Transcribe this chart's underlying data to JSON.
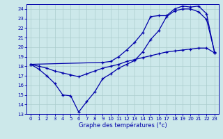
{
  "xlabel": "Graphe des températures (°c)",
  "background_color": "#cce8ea",
  "grid_color": "#aacccc",
  "line_color": "#0000aa",
  "xlim": [
    -0.5,
    23.5
  ],
  "ylim": [
    13,
    24.5
  ],
  "yticks": [
    13,
    14,
    15,
    16,
    17,
    18,
    19,
    20,
    21,
    22,
    23,
    24
  ],
  "xticks": [
    0,
    1,
    2,
    3,
    4,
    5,
    6,
    7,
    8,
    9,
    10,
    11,
    12,
    13,
    14,
    15,
    16,
    17,
    18,
    19,
    20,
    21,
    22,
    23
  ],
  "line1_x": [
    0,
    1,
    2,
    3,
    4,
    5,
    6,
    7,
    8,
    9,
    10,
    11,
    12,
    13,
    14,
    15,
    16,
    17,
    18,
    19,
    20,
    21,
    22,
    23
  ],
  "line1_y": [
    18.2,
    17.7,
    17.0,
    16.2,
    15.0,
    14.9,
    13.2,
    14.3,
    15.3,
    16.7,
    17.2,
    17.8,
    18.2,
    18.6,
    19.5,
    20.8,
    21.7,
    23.2,
    23.8,
    24.0,
    24.0,
    23.7,
    22.9,
    19.5
  ],
  "line2_x": [
    0,
    9,
    10,
    11,
    12,
    13,
    14,
    15,
    16,
    17,
    18,
    19,
    20,
    21,
    22,
    23
  ],
  "line2_y": [
    18.2,
    18.4,
    18.5,
    19.0,
    19.7,
    20.5,
    21.5,
    23.2,
    23.3,
    23.3,
    24.0,
    24.3,
    24.2,
    24.3,
    23.5,
    19.4
  ],
  "line3_x": [
    0,
    1,
    2,
    3,
    4,
    5,
    6,
    7,
    8,
    9,
    10,
    11,
    12,
    13,
    14,
    15,
    16,
    17,
    18,
    19,
    20,
    21,
    22,
    23
  ],
  "line3_y": [
    18.2,
    18.0,
    17.8,
    17.5,
    17.3,
    17.1,
    16.9,
    17.2,
    17.5,
    17.8,
    18.0,
    18.2,
    18.5,
    18.7,
    18.9,
    19.1,
    19.3,
    19.5,
    19.6,
    19.7,
    19.8,
    19.9,
    19.9,
    19.4
  ]
}
